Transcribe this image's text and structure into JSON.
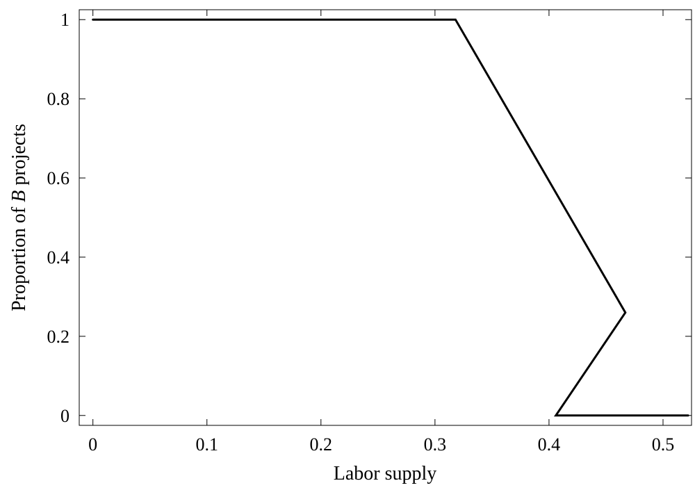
{
  "chart_data": {
    "type": "line",
    "title": "",
    "xlabel": "Labor supply",
    "ylabel_parts": [
      "Proportion of ",
      "B",
      " projects"
    ],
    "xlim": [
      -0.012,
      0.525
    ],
    "ylim": [
      -0.025,
      1.025
    ],
    "xticks": [
      0,
      0.1,
      0.2,
      0.3,
      0.4,
      0.5
    ],
    "xtick_labels": [
      "0",
      "0.1",
      "0.2",
      "0.3",
      "0.4",
      "0.5"
    ],
    "yticks": [
      0,
      0.2,
      0.4,
      0.6,
      0.8,
      1
    ],
    "ytick_labels": [
      "0",
      "0.2",
      "0.4",
      "0.6",
      "0.8",
      "1"
    ],
    "grid": false,
    "series": [
      {
        "x": [
          0,
          0.318,
          0.467,
          0.406,
          0.522
        ],
        "y": [
          1,
          1,
          0.26,
          0,
          0
        ],
        "color": "#000000"
      }
    ]
  }
}
